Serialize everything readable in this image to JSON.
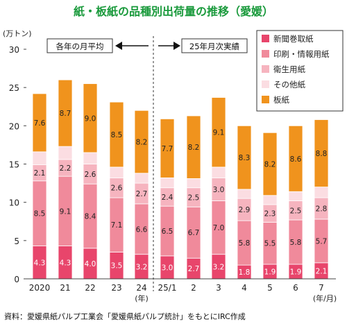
{
  "chart_data": {
    "type": "bar",
    "stacked": true,
    "title": "紙・板紙の品種別出荷量の推移（愛媛）",
    "ylabel": "(万トン)",
    "ylim": [
      0,
      30
    ],
    "yticks": [
      0,
      5,
      10,
      15,
      20,
      25,
      30
    ],
    "categories": [
      "2020",
      "21",
      "22",
      "23",
      "24",
      "25/1",
      "2",
      "3",
      "4",
      "5",
      "6",
      "7"
    ],
    "unit_labels": {
      "year": "(年)",
      "month": "(年/月)"
    },
    "series": [
      {
        "name": "新聞巻取紙",
        "color": "#e8456b",
        "values": [
          4.3,
          4.3,
          4.0,
          3.5,
          3.2,
          3.0,
          2.7,
          3.2,
          1.8,
          1.9,
          1.9,
          2.1
        ]
      },
      {
        "name": "印刷・情報用紙",
        "color": "#f08a9b",
        "values": [
          8.5,
          9.1,
          8.4,
          7.1,
          6.6,
          6.5,
          6.7,
          7.0,
          5.8,
          5.5,
          5.8,
          5.7
        ]
      },
      {
        "name": "衛生用紙",
        "color": "#f6b4bf",
        "values": [
          2.1,
          2.2,
          2.6,
          2.6,
          2.7,
          2.4,
          2.5,
          3.0,
          2.9,
          2.3,
          2.5,
          2.8
        ]
      },
      {
        "name": "その他紙",
        "color": "#fbdde2",
        "values": [
          1.7,
          1.7,
          1.5,
          1.4,
          1.3,
          1.3,
          1.2,
          1.4,
          1.2,
          1.2,
          1.2,
          1.4
        ]
      },
      {
        "name": "板紙",
        "color": "#f0931d",
        "values": [
          7.6,
          8.7,
          9.0,
          8.5,
          8.2,
          7.7,
          8.2,
          9.1,
          8.3,
          8.2,
          8.6,
          8.8
        ]
      }
    ],
    "labeled_series": [
      "新聞巻取紙",
      "印刷・情報用紙",
      "衛生用紙",
      "板紙"
    ],
    "annotations": {
      "left": "各年の月平均",
      "right": "25年月次実績"
    },
    "grid": false,
    "legend_position": "top-right",
    "source": "資料：愛媛県紙パルプ工業会「愛媛県紙パルプ統計」をもとにIRC作成"
  }
}
